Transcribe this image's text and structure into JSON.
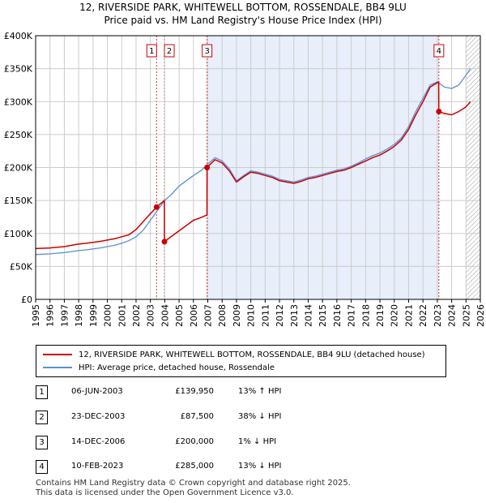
{
  "title": {
    "line1": "12, RIVERSIDE PARK, WHITEWELL BOTTOM, ROSSENDALE, BB4 9LU",
    "line2": "Price paid vs. HM Land Registry's House Price Index (HPI)"
  },
  "colors": {
    "property": "#cc0000",
    "hpi": "#5b8fd4",
    "shade": "#e8eefa",
    "grid": "#cccccc"
  },
  "legend": {
    "property_label": "12, RIVERSIDE PARK, WHITEWELL BOTTOM, ROSSENDALE, BB4 9LU (detached house)",
    "hpi_label": "HPI: Average price, detached house, Rossendale"
  },
  "transactions": [
    {
      "num": "1",
      "date": "06-JUN-2003",
      "price": "£139,950",
      "hpi": "13% ↑ HPI"
    },
    {
      "num": "2",
      "date": "23-DEC-2003",
      "price": "£87,500",
      "hpi": "38% ↓ HPI"
    },
    {
      "num": "3",
      "date": "14-DEC-2006",
      "price": "£200,000",
      "hpi": "1% ↓ HPI"
    },
    {
      "num": "4",
      "date": "10-FEB-2023",
      "price": "£285,000",
      "hpi": "13% ↓ HPI"
    }
  ],
  "footer": {
    "line1": "Contains HM Land Registry data © Crown copyright and database right 2025.",
    "line2": "This data is licensed under the Open Government Licence v3.0."
  },
  "chart_data": {
    "type": "line",
    "title": "Price paid vs. HM Land Registry's House Price Index (HPI)",
    "xlabel": "",
    "ylabel": "",
    "xlim": [
      1995,
      2026
    ],
    "ylim": [
      0,
      400000
    ],
    "x_ticks": [
      "1995",
      "1996",
      "1997",
      "1998",
      "1999",
      "2000",
      "2001",
      "2002",
      "2003",
      "2004",
      "2005",
      "2006",
      "2007",
      "2008",
      "2009",
      "2010",
      "2011",
      "2012",
      "2013",
      "2014",
      "2015",
      "2016",
      "2017",
      "2018",
      "2019",
      "2020",
      "2021",
      "2022",
      "2023",
      "2024",
      "2025",
      "2026"
    ],
    "y_ticks": [
      {
        "value": 0,
        "label": "£0"
      },
      {
        "value": 50000,
        "label": "£50K"
      },
      {
        "value": 100000,
        "label": "£100K"
      },
      {
        "value": 150000,
        "label": "£150K"
      },
      {
        "value": 200000,
        "label": "£200K"
      },
      {
        "value": 250000,
        "label": "£250K"
      },
      {
        "value": 300000,
        "label": "£300K"
      },
      {
        "value": 350000,
        "label": "£350K"
      },
      {
        "value": 400000,
        "label": "£400K"
      }
    ],
    "shaded_range": [
      2006.95,
      2023.11
    ],
    "hatch_from": 2025.0,
    "sales": [
      {
        "label": "1",
        "x": 2003.43,
        "y": 139950
      },
      {
        "label": "2",
        "x": 2003.98,
        "y": 87500
      },
      {
        "label": "3",
        "x": 2006.95,
        "y": 200000
      },
      {
        "label": "4",
        "x": 2023.11,
        "y": 285000
      }
    ],
    "series": [
      {
        "name": "HPI: Average price, detached house, Rossendale",
        "x": [
          1995,
          1995.5,
          1996,
          1996.5,
          1997,
          1997.5,
          1998,
          1998.5,
          1999,
          1999.5,
          2000,
          2000.5,
          2001,
          2001.5,
          2002,
          2002.5,
          2003,
          2003.5,
          2004,
          2004.5,
          2005,
          2005.5,
          2006,
          2006.5,
          2007,
          2007.5,
          2008,
          2008.5,
          2009,
          2009.5,
          2010,
          2010.5,
          2011,
          2011.5,
          2012,
          2012.5,
          2013,
          2013.5,
          2014,
          2014.5,
          2015,
          2015.5,
          2016,
          2016.5,
          2017,
          2017.5,
          2018,
          2018.5,
          2019,
          2019.5,
          2020,
          2020.5,
          2021,
          2021.5,
          2022,
          2022.5,
          2023,
          2023.5,
          2024,
          2024.5,
          2025,
          2025.3
        ],
        "values": [
          68000,
          68500,
          69000,
          70000,
          71000,
          72500,
          74000,
          75000,
          76500,
          78000,
          80000,
          82000,
          85000,
          89000,
          95000,
          105000,
          120000,
          135000,
          150000,
          160000,
          172000,
          180000,
          188000,
          195000,
          205000,
          215000,
          210000,
          198000,
          180000,
          188000,
          195000,
          193000,
          190000,
          187000,
          182000,
          180000,
          178000,
          181000,
          185000,
          187000,
          190000,
          193000,
          196000,
          198000,
          202000,
          207000,
          213000,
          218000,
          222000,
          228000,
          235000,
          245000,
          262000,
          285000,
          305000,
          325000,
          330000,
          322000,
          320000,
          325000,
          340000,
          350000
        ]
      },
      {
        "name": "12, RIVERSIDE PARK, WHITEWELL BOTTOM, ROSSENDALE, BB4 9LU (detached house)",
        "x": [
          1995,
          1995.5,
          1996,
          1996.5,
          1997,
          1997.5,
          1998,
          1998.5,
          1999,
          1999.5,
          2000,
          2000.5,
          2001,
          2001.5,
          2002,
          2002.5,
          2003,
          2003.43,
          2003.97,
          2003.98,
          2004.5,
          2005,
          2005.5,
          2006,
          2006.5,
          2006.94,
          2006.95,
          2007.5,
          2008,
          2008.5,
          2009,
          2009.5,
          2010,
          2010.5,
          2011,
          2011.5,
          2012,
          2012.5,
          2013,
          2013.5,
          2014,
          2014.5,
          2015,
          2015.5,
          2016,
          2016.5,
          2017,
          2017.5,
          2018,
          2018.5,
          2019,
          2019.5,
          2020,
          2020.5,
          2021,
          2021.5,
          2022,
          2022.5,
          2023.1,
          2023.11,
          2023.5,
          2024,
          2024.5,
          2025,
          2025.3
        ],
        "values": [
          77000,
          77500,
          78000,
          79000,
          80000,
          82000,
          84000,
          85000,
          86500,
          88000,
          90000,
          92000,
          95000,
          98000,
          106000,
          118000,
          130000,
          139950,
          150000,
          87500,
          96000,
          104000,
          112000,
          120000,
          124000,
          128000,
          200000,
          212000,
          207000,
          195000,
          178000,
          186000,
          193000,
          191000,
          188000,
          185000,
          180000,
          178000,
          176000,
          179000,
          183000,
          185000,
          188000,
          191000,
          194000,
          196000,
          200000,
          205000,
          210000,
          215000,
          219000,
          225000,
          232000,
          242000,
          258000,
          280000,
          300000,
          322000,
          330000,
          285000,
          282000,
          280000,
          285000,
          292000,
          300000
        ]
      }
    ]
  }
}
